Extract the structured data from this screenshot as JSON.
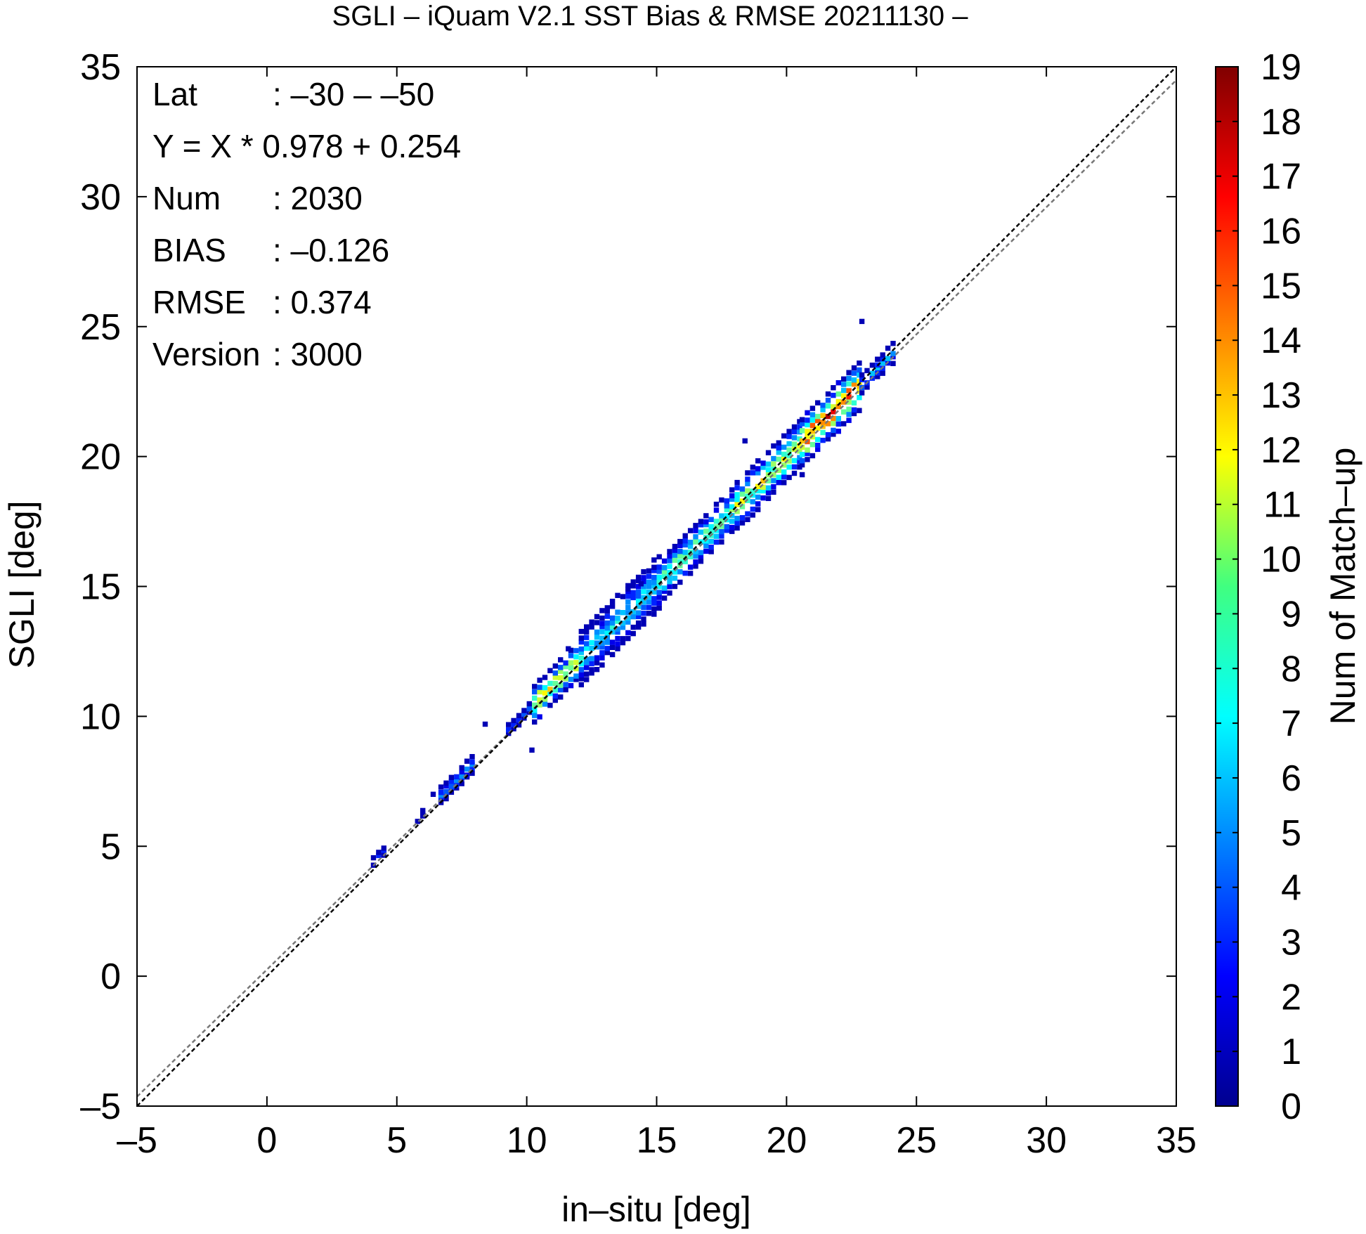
{
  "chart_data": {
    "type": "heatmap",
    "title": "SGLI – iQuam V2.1 SST Bias & RMSE 20211130 –",
    "xlabel": "in–situ [deg]",
    "ylabel": "SGLI [deg]",
    "xlim": [
      -5,
      35
    ],
    "ylim": [
      -5,
      35
    ],
    "x_ticks": [
      "–5",
      "0",
      "5",
      "10",
      "15",
      "20",
      "25",
      "30",
      "35"
    ],
    "y_ticks": [
      "–5",
      "0",
      "5",
      "10",
      "15",
      "20",
      "25",
      "30",
      "35"
    ],
    "colorbar": {
      "label": "Num of Match–up",
      "range": [
        0,
        19
      ],
      "ticks": [
        "0",
        "1",
        "2",
        "3",
        "4",
        "5",
        "6",
        "7",
        "8",
        "9",
        "10",
        "11",
        "12",
        "13",
        "14",
        "15",
        "16",
        "17",
        "18",
        "19"
      ]
    },
    "stats": [
      {
        "key": "Lat",
        "value": ": –30 – –50"
      },
      {
        "key": "Y = X * 0.978 + 0.254",
        "value": ""
      },
      {
        "key": "Num",
        "value": ": 2030"
      },
      {
        "key": "BIAS",
        "value": ": –0.126"
      },
      {
        "key": "RMSE",
        "value": ": 0.374"
      },
      {
        "key": "Version",
        "value": ": 3000"
      }
    ],
    "regression": {
      "slope": 0.978,
      "intercept": 0.254
    },
    "one_to_one_line": true,
    "cluster_segments": [
      {
        "x0": 4.0,
        "x1": 4.6,
        "n": 3,
        "spread": 0.25,
        "peak": 3
      },
      {
        "x0": 5.7,
        "x1": 6.1,
        "n": 2,
        "spread": 0.2,
        "peak": 2
      },
      {
        "x0": 6.6,
        "x1": 8.0,
        "n": 5,
        "spread": 0.3,
        "peak": 5
      },
      {
        "x0": 9.2,
        "x1": 10.2,
        "n": 4,
        "spread": 0.35,
        "peak": 4
      },
      {
        "x0": 10.2,
        "x1": 12.0,
        "n": 9,
        "spread": 0.45,
        "peak": 14
      },
      {
        "x0": 12.0,
        "x1": 15.2,
        "n": 14,
        "spread": 0.4,
        "peak": 8
      },
      {
        "x0": 15.2,
        "x1": 18.0,
        "n": 13,
        "spread": 0.4,
        "peak": 11
      },
      {
        "x0": 18.0,
        "x1": 20.5,
        "n": 12,
        "spread": 0.45,
        "peak": 13
      },
      {
        "x0": 20.5,
        "x1": 22.8,
        "n": 11,
        "spread": 0.45,
        "peak": 18
      },
      {
        "x0": 22.8,
        "x1": 24.2,
        "n": 7,
        "spread": 0.35,
        "peak": 6
      }
    ],
    "outliers": [
      {
        "x": 8.3,
        "y": 9.6
      },
      {
        "x": 6.3,
        "y": 6.9
      },
      {
        "x": 11.5,
        "y": 12.5
      },
      {
        "x": 14.3,
        "y": 15.0
      },
      {
        "x": 18.3,
        "y": 20.5
      },
      {
        "x": 22.8,
        "y": 25.1
      },
      {
        "x": 10.1,
        "y": 8.6
      },
      {
        "x": 13.8,
        "y": 14.8
      },
      {
        "x": 20.5,
        "y": 19.2
      }
    ]
  }
}
